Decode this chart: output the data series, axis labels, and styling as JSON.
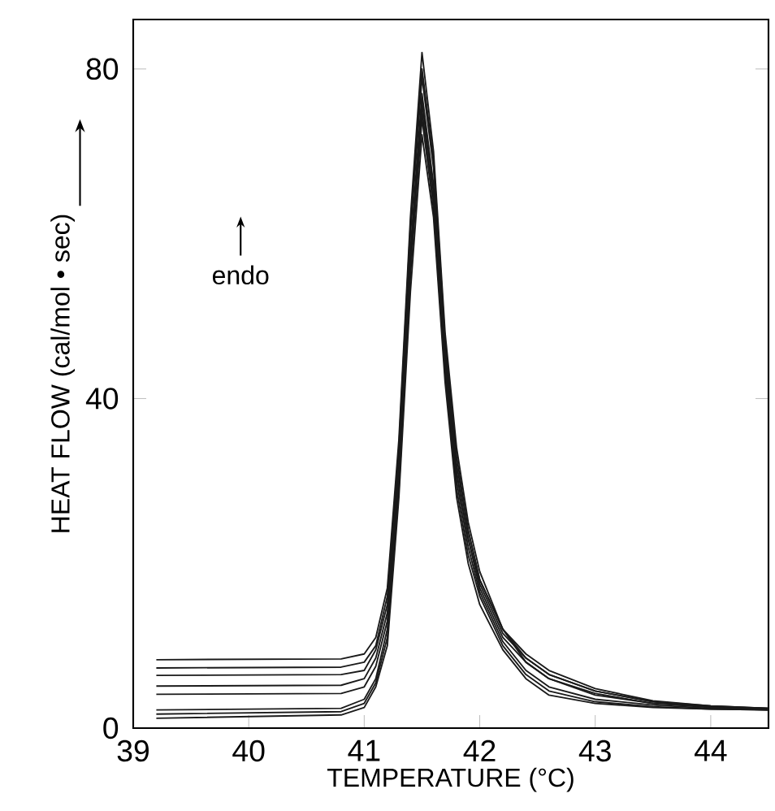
{
  "chart_data": {
    "type": "line",
    "xlabel": "TEMPERATURE (°C)",
    "ylabel": "HEAT FLOW (cal/mol • sec)",
    "annotations": [
      "endo"
    ],
    "xlim": [
      39,
      44.5
    ],
    "xticks": [
      39,
      40,
      41,
      42,
      43,
      44
    ],
    "ylim": [
      0,
      86
    ],
    "yticks": [
      0,
      40,
      80
    ],
    "marker": "none",
    "line_style": "solid",
    "x": [
      39.2,
      40.8,
      41.0,
      41.1,
      41.2,
      41.3,
      41.4,
      41.5,
      41.6,
      41.7,
      41.8,
      41.9,
      42.0,
      42.2,
      42.4,
      42.6,
      43.0,
      43.5,
      44.0,
      44.5
    ],
    "series": [
      {
        "color": "#1a1a1a",
        "values": [
          8.3,
          8.4,
          9,
          11,
          17,
          35,
          62,
          82,
          70,
          48,
          34,
          25,
          19,
          12,
          8,
          6,
          4,
          3,
          2.6,
          2.4
        ]
      },
      {
        "color": "#1a1a1a",
        "values": [
          7.3,
          7.4,
          8,
          10,
          16,
          34,
          61,
          80,
          69,
          47,
          33,
          24,
          18,
          12,
          8.5,
          6.5,
          4.5,
          3.2,
          2.7,
          2.4
        ]
      },
      {
        "color": "#1a1a1a",
        "values": [
          6.4,
          6.5,
          7,
          9.5,
          15,
          33,
          60,
          79,
          68,
          46,
          32,
          24,
          18,
          12,
          9,
          7,
          4.8,
          3.3,
          2.7,
          2.4
        ]
      },
      {
        "color": "#1a1a1a",
        "values": [
          5.1,
          5.2,
          6,
          8.5,
          14,
          32,
          58,
          77,
          66,
          45,
          31,
          23,
          17.5,
          11.5,
          8.5,
          6.5,
          4.5,
          3.2,
          2.6,
          2.3
        ]
      },
      {
        "color": "#1a1a1a",
        "values": [
          4.1,
          4.2,
          5,
          7.5,
          13,
          31,
          57,
          76,
          65,
          45,
          31,
          23,
          17,
          11,
          8,
          6,
          4.2,
          3.0,
          2.5,
          2.3
        ]
      },
      {
        "color": "#1a1a1a",
        "values": [
          2.2,
          2.4,
          3.5,
          6,
          12,
          30,
          56,
          75,
          64,
          44,
          30,
          22,
          16.5,
          10.5,
          7,
          5,
          3.5,
          2.8,
          2.4,
          2.2
        ]
      },
      {
        "color": "#1a1a1a",
        "values": [
          1.7,
          2.0,
          3,
          5.5,
          11,
          29,
          55,
          74,
          63,
          43,
          29,
          21,
          16,
          10,
          6.5,
          4.5,
          3.2,
          2.6,
          2.3,
          2.2
        ]
      },
      {
        "color": "#1a1a1a",
        "values": [
          1.2,
          1.6,
          2.5,
          5,
          10,
          28,
          53,
          72,
          62,
          42,
          28,
          20,
          15,
          9.5,
          6,
          4,
          3,
          2.5,
          2.3,
          2.2
        ]
      }
    ]
  }
}
